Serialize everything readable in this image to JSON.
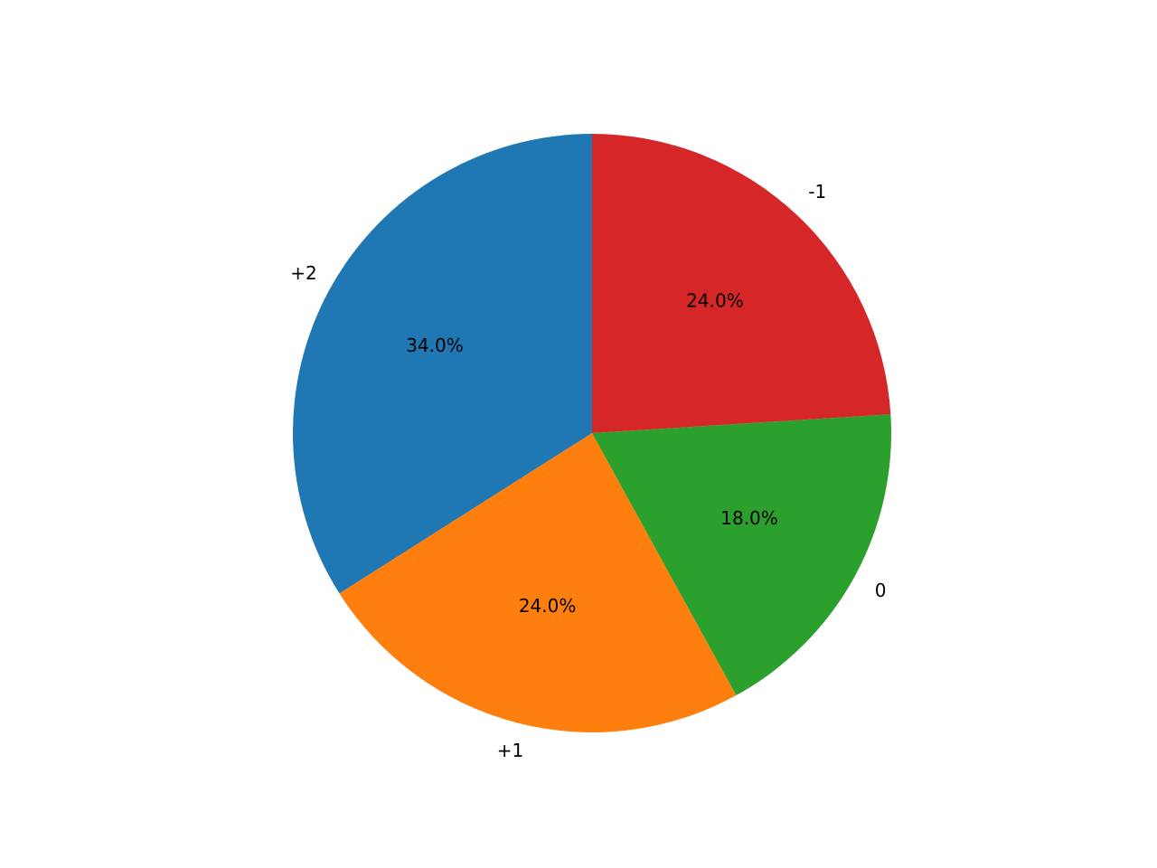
{
  "chart_data": {
    "type": "pie",
    "categories": [
      "+2",
      "+1",
      "0",
      "-1"
    ],
    "values": [
      34,
      24,
      18,
      24
    ],
    "value_labels": [
      "34.0%",
      "24.0%",
      "18.0%",
      "24.0%"
    ],
    "colors": [
      "#1f77b4",
      "#ff7f0e",
      "#2ca02c",
      "#d62728"
    ]
  }
}
